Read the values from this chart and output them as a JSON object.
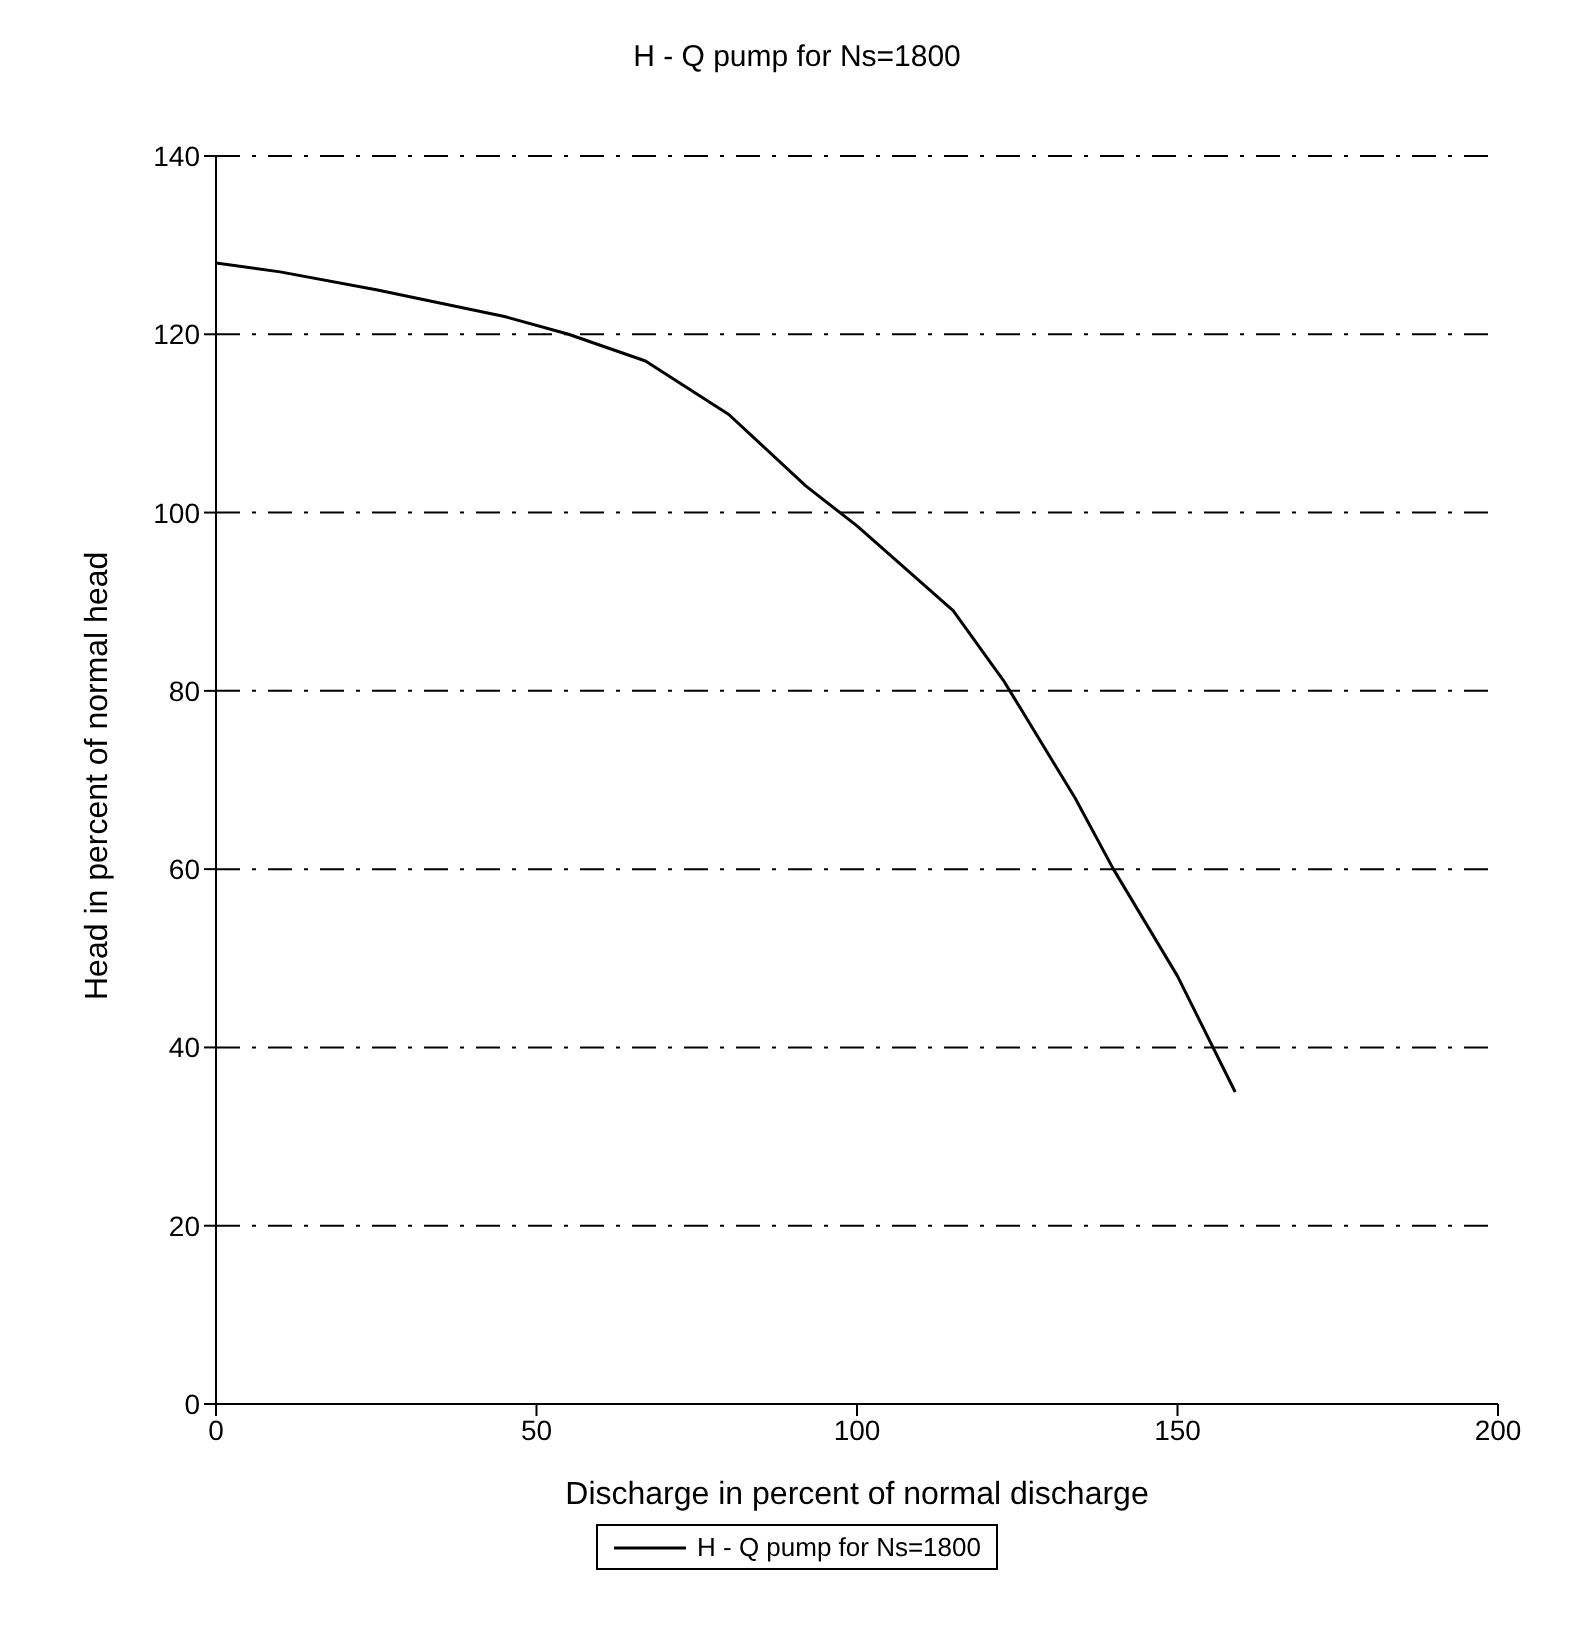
{
  "chart_data": {
    "type": "line",
    "title": "H - Q pump for  Ns=1800",
    "xlabel": "Discharge in percent of normal discharge",
    "ylabel": "Head in percent of normal head",
    "series": [
      {
        "name": "H - Q pump for  Ns=1800",
        "color": "#000000",
        "x": [
          0,
          10,
          25,
          45,
          55,
          67,
          80,
          92,
          100,
          115,
          123,
          134,
          140,
          150,
          159
        ],
        "values": [
          128,
          127,
          125,
          122,
          120,
          117,
          111,
          103,
          98.5,
          89,
          81,
          68,
          60,
          48,
          35
        ]
      }
    ],
    "xlim": [
      0,
      200
    ],
    "xticks": [
      0,
      50,
      100,
      150,
      200
    ],
    "ylim": [
      0,
      140
    ],
    "yticks": [
      0,
      20,
      40,
      60,
      80,
      100,
      120,
      140
    ],
    "grid": "y",
    "legend": "bottom",
    "marker": "none",
    "line_style": "solid"
  }
}
